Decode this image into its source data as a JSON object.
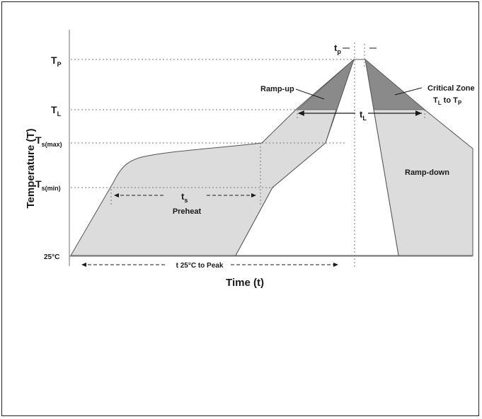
{
  "y_axis": {
    "title": "Temperature (T)",
    "ticks": [
      {
        "main": "T",
        "sub": "P"
      },
      {
        "main": "T",
        "sub": "L"
      },
      {
        "main": "T",
        "sub": "s(max)"
      },
      {
        "main": "T",
        "sub": "s(min)"
      },
      {
        "main": "25°C",
        "sub": ""
      }
    ]
  },
  "x_axis": {
    "title": "Time (t)"
  },
  "annotations": {
    "tp": {
      "main": "t",
      "sub": "p"
    },
    "tl": {
      "main": "t",
      "sub": "L"
    },
    "ts": {
      "main": "t",
      "sub": "s"
    },
    "preheat": "Preheat",
    "ramp_up": "Ramp-up",
    "ramp_down": "Ramp-down",
    "critical_zone": {
      "line1": "Critical Zone",
      "line2_t1": "T",
      "line2_s1": "L",
      "line2_mid": " to T",
      "line2_s2": "P"
    },
    "t25_to_peak": "t 25°C to Peak"
  },
  "colors": {
    "band_fill": "#dcdcdc",
    "critical_fill": "#8a8a8a",
    "outline": "#555555"
  }
}
